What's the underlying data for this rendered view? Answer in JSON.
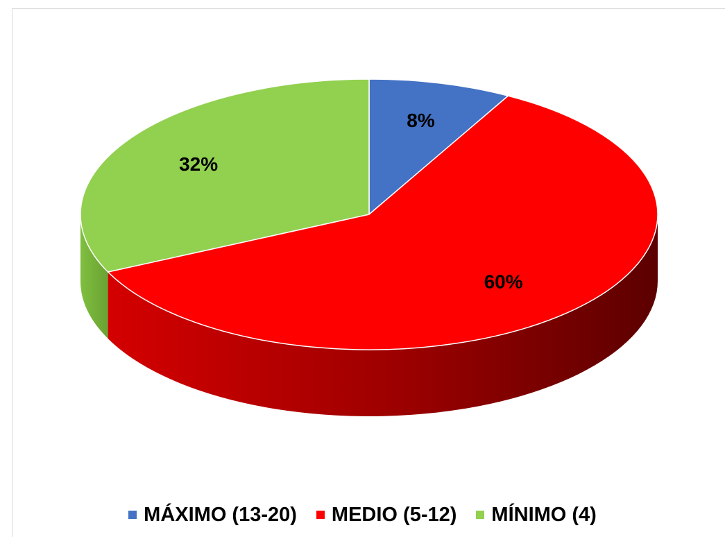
{
  "chart_data": {
    "type": "pie",
    "three_d": true,
    "categories": [
      "MÁXIMO (13-20)",
      "MEDIO (5-12)",
      "MÍNIMO (4)"
    ],
    "values": [
      8,
      60,
      32
    ],
    "labels": [
      "8%",
      "60%",
      "32%"
    ],
    "colors": [
      "#4472c4",
      "#ff0000",
      "#92d050"
    ],
    "legend_position": "bottom"
  }
}
